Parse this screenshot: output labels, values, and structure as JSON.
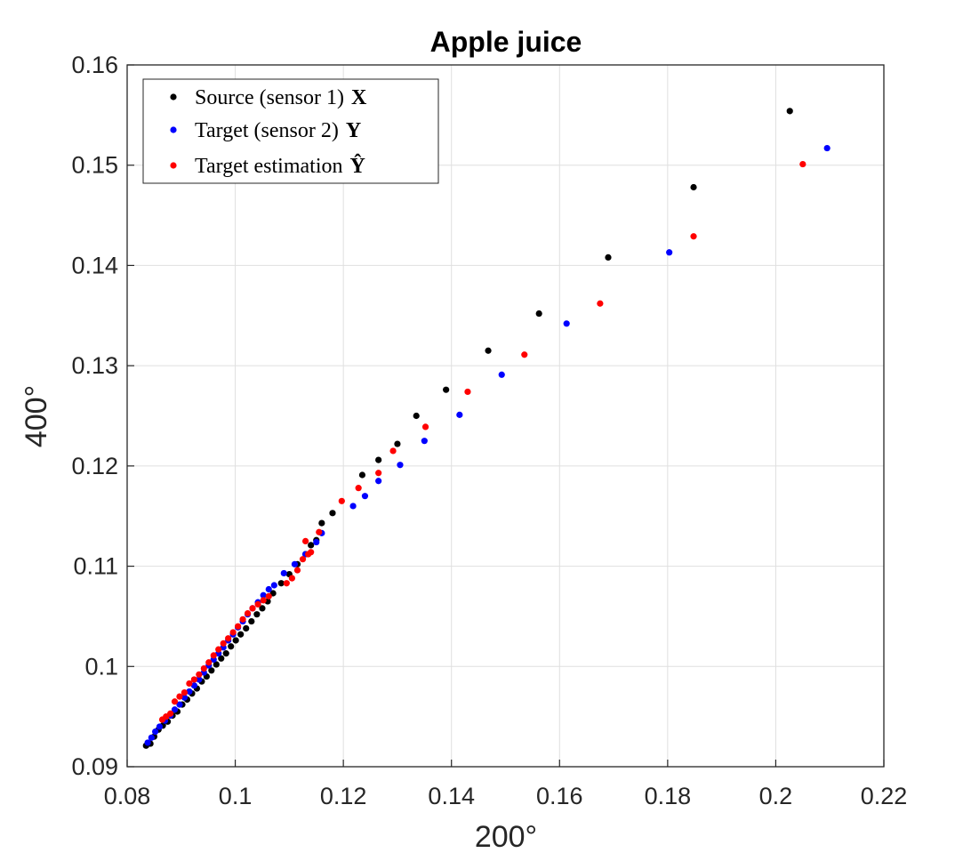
{
  "chart_data": {
    "type": "scatter",
    "title": "Apple juice",
    "xlabel": "200°",
    "ylabel": "400°",
    "xlim": [
      0.08,
      0.22
    ],
    "ylim": [
      0.09,
      0.16
    ],
    "xticks": [
      "0.08",
      "0.1",
      "0.12",
      "0.14",
      "0.16",
      "0.18",
      "0.2",
      "0.22"
    ],
    "yticks": [
      "0.09",
      "0.1",
      "0.11",
      "0.12",
      "0.13",
      "0.14",
      "0.15",
      "0.16"
    ],
    "grid": true,
    "legend_position": "top-left",
    "series": [
      {
        "name": "Source (sensor 1)",
        "symbol": "X",
        "color": "#000000",
        "points": [
          [
            0.0835,
            0.0921
          ],
          [
            0.0843,
            0.0923
          ],
          [
            0.085,
            0.093
          ],
          [
            0.0858,
            0.0937
          ],
          [
            0.0866,
            0.0941
          ],
          [
            0.0875,
            0.0945
          ],
          [
            0.0884,
            0.0951
          ],
          [
            0.0893,
            0.0955
          ],
          [
            0.0902,
            0.0962
          ],
          [
            0.0911,
            0.0967
          ],
          [
            0.092,
            0.0973
          ],
          [
            0.0929,
            0.0978
          ],
          [
            0.0938,
            0.0985
          ],
          [
            0.0947,
            0.099
          ],
          [
            0.0956,
            0.0996
          ],
          [
            0.0965,
            0.1002
          ],
          [
            0.0974,
            0.1008
          ],
          [
            0.0983,
            0.1013
          ],
          [
            0.0992,
            0.102
          ],
          [
            0.1001,
            0.1026
          ],
          [
            0.101,
            0.1032
          ],
          [
            0.102,
            0.1038
          ],
          [
            0.103,
            0.1045
          ],
          [
            0.104,
            0.1052
          ],
          [
            0.105,
            0.1058
          ],
          [
            0.106,
            0.1065
          ],
          [
            0.107,
            0.1073
          ],
          [
            0.1085,
            0.1083
          ],
          [
            0.11,
            0.1092
          ],
          [
            0.1115,
            0.1102
          ],
          [
            0.113,
            0.1112
          ],
          [
            0.114,
            0.1121
          ],
          [
            0.115,
            0.1126
          ],
          [
            0.116,
            0.1143
          ],
          [
            0.118,
            0.1153
          ],
          [
            0.1235,
            0.1191
          ],
          [
            0.1265,
            0.1206
          ],
          [
            0.13,
            0.1222
          ],
          [
            0.1335,
            0.125
          ],
          [
            0.139,
            0.1276
          ],
          [
            0.1468,
            0.1315
          ],
          [
            0.1562,
            0.1352
          ],
          [
            0.169,
            0.1408
          ],
          [
            0.1848,
            0.1478
          ],
          [
            0.2026,
            0.1554
          ]
        ]
      },
      {
        "name": "Target (sensor 2)",
        "symbol": "Y",
        "color": "#0000ff",
        "points": [
          [
            0.0838,
            0.0924
          ],
          [
            0.0845,
            0.0929
          ],
          [
            0.0852,
            0.0935
          ],
          [
            0.086,
            0.094
          ],
          [
            0.087,
            0.0946
          ],
          [
            0.088,
            0.0951
          ],
          [
            0.0888,
            0.0957
          ],
          [
            0.0897,
            0.0962
          ],
          [
            0.0906,
            0.0969
          ],
          [
            0.0915,
            0.0975
          ],
          [
            0.0924,
            0.0981
          ],
          [
            0.0933,
            0.0987
          ],
          [
            0.0942,
            0.0994
          ],
          [
            0.0951,
            0.1001
          ],
          [
            0.096,
            0.1007
          ],
          [
            0.0969,
            0.1013
          ],
          [
            0.0978,
            0.1019
          ],
          [
            0.0987,
            0.1026
          ],
          [
            0.0996,
            0.1032
          ],
          [
            0.1005,
            0.1039
          ],
          [
            0.1014,
            0.1045
          ],
          [
            0.1023,
            0.1052
          ],
          [
            0.1032,
            0.1058
          ],
          [
            0.1042,
            0.1064
          ],
          [
            0.1052,
            0.1071
          ],
          [
            0.1062,
            0.1077
          ],
          [
            0.1072,
            0.1081
          ],
          [
            0.109,
            0.1093
          ],
          [
            0.111,
            0.1102
          ],
          [
            0.113,
            0.1112
          ],
          [
            0.115,
            0.1124
          ],
          [
            0.116,
            0.1133
          ],
          [
            0.1218,
            0.116
          ],
          [
            0.124,
            0.117
          ],
          [
            0.1265,
            0.1185
          ],
          [
            0.1305,
            0.1201
          ],
          [
            0.135,
            0.1225
          ],
          [
            0.1415,
            0.1251
          ],
          [
            0.1493,
            0.1291
          ],
          [
            0.1613,
            0.1342
          ],
          [
            0.1803,
            0.1413
          ],
          [
            0.2095,
            0.1517
          ]
        ]
      },
      {
        "name": "Target estimation",
        "symbol": "Ŷ",
        "color": "#ff0000",
        "points": [
          [
            0.0865,
            0.0947
          ],
          [
            0.0872,
            0.095
          ],
          [
            0.088,
            0.0953
          ],
          [
            0.0888,
            0.0965
          ],
          [
            0.0897,
            0.097
          ],
          [
            0.0906,
            0.0974
          ],
          [
            0.0915,
            0.0983
          ],
          [
            0.0924,
            0.0987
          ],
          [
            0.0933,
            0.0992
          ],
          [
            0.0942,
            0.0998
          ],
          [
            0.0951,
            0.1004
          ],
          [
            0.096,
            0.1011
          ],
          [
            0.0969,
            0.1017
          ],
          [
            0.0978,
            0.1023
          ],
          [
            0.0987,
            0.1028
          ],
          [
            0.0996,
            0.1034
          ],
          [
            0.1005,
            0.104
          ],
          [
            0.1014,
            0.1047
          ],
          [
            0.1023,
            0.1053
          ],
          [
            0.1032,
            0.1058
          ],
          [
            0.1042,
            0.1062
          ],
          [
            0.1052,
            0.1066
          ],
          [
            0.1062,
            0.107
          ],
          [
            0.1095,
            0.1083
          ],
          [
            0.1105,
            0.1088
          ],
          [
            0.1115,
            0.1096
          ],
          [
            0.1125,
            0.1107
          ],
          [
            0.1135,
            0.1112
          ],
          [
            0.114,
            0.1114
          ],
          [
            0.113,
            0.1125
          ],
          [
            0.1155,
            0.1134
          ],
          [
            0.1197,
            0.1165
          ],
          [
            0.1228,
            0.1178
          ],
          [
            0.1265,
            0.1193
          ],
          [
            0.1292,
            0.1215
          ],
          [
            0.1352,
            0.1239
          ],
          [
            0.143,
            0.1274
          ],
          [
            0.1535,
            0.1311
          ],
          [
            0.1675,
            0.1362
          ],
          [
            0.1848,
            0.1429
          ],
          [
            0.205,
            0.1501
          ]
        ]
      }
    ]
  }
}
